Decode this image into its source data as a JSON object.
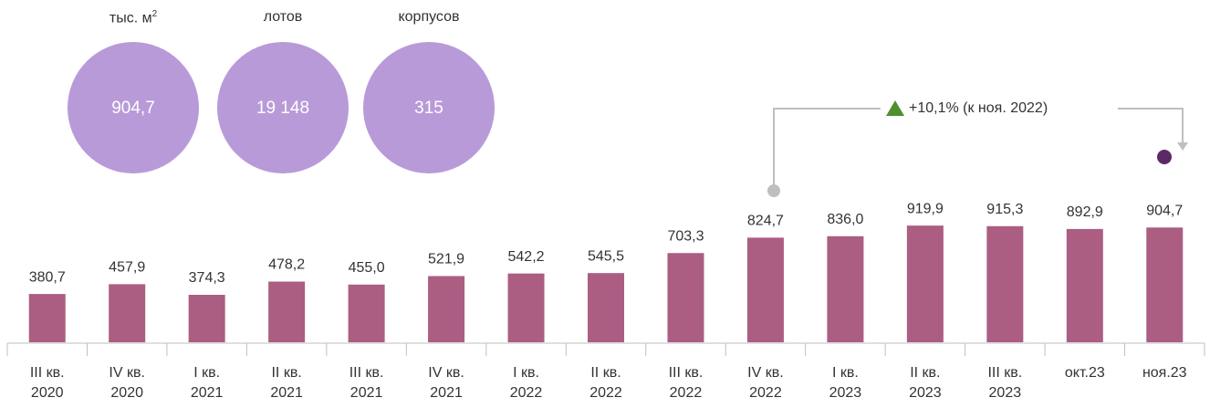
{
  "kpis": [
    {
      "label": "тыс. м",
      "sup": "2",
      "value": "904,7"
    },
    {
      "label": "лотов",
      "value": "19 148"
    },
    {
      "label": "корпусов",
      "value": "315"
    }
  ],
  "chart_data": {
    "type": "bar",
    "categories": [
      "III кв. 2020",
      "IV кв. 2020",
      "I кв. 2021",
      "II кв. 2021",
      "III кв. 2021",
      "IV кв. 2021",
      "I кв. 2022",
      "II кв. 2022",
      "III кв. 2022",
      "IV кв. 2022",
      "I кв. 2023",
      "II кв. 2023",
      "III кв. 2023",
      "окт.23",
      "ноя.23"
    ],
    "values": [
      380.7,
      457.9,
      374.3,
      478.2,
      455.0,
      521.9,
      542.2,
      545.5,
      703.3,
      824.7,
      836.0,
      919.9,
      915.3,
      892.9,
      904.7
    ],
    "value_labels": [
      "380,7",
      "457,9",
      "374,3",
      "478,2",
      "455,0",
      "521,9",
      "542,2",
      "545,5",
      "703,3",
      "824,7",
      "836,0",
      "919,9",
      "915,3",
      "892,9",
      "904,7"
    ],
    "color": "#ab5e82",
    "ylim": [
      0,
      1000
    ],
    "annotation": "+10,1% (к ноя. 2022)"
  }
}
